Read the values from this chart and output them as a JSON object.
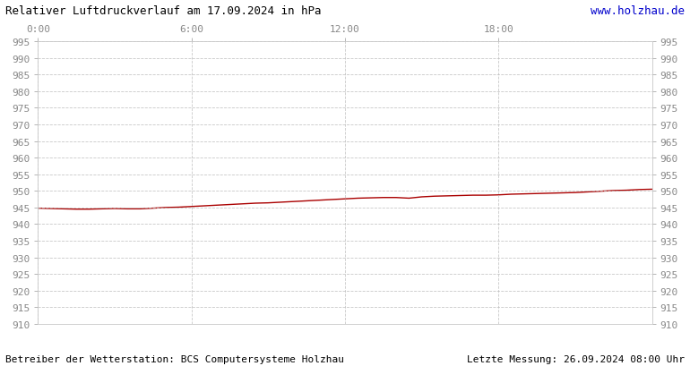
{
  "title": "Relativer Luftdruckverlauf am 17.09.2024 in hPa",
  "url_text": "www.holzhau.de",
  "footer_left": "Betreiber der Wetterstation: BCS Computersysteme Holzhau",
  "footer_right": "Letzte Messung: 26.09.2024 08:00 Uhr",
  "x_ticks_labels": [
    "0:00",
    "6:00",
    "12:00",
    "18:00"
  ],
  "x_ticks_positions": [
    0,
    360,
    720,
    1080
  ],
  "x_min": 0,
  "x_max": 1440,
  "y_min": 910,
  "y_max": 995,
  "y_tick_step": 5,
  "line_color": "#aa0000",
  "grid_color": "#bbbbbb",
  "background_color": "#ffffff",
  "border_color": "#cccccc",
  "title_color": "#000000",
  "url_color": "#0000cc",
  "footer_color": "#000000",
  "tick_label_color": "#888888",
  "pressure_data_x": [
    0,
    30,
    60,
    90,
    120,
    150,
    180,
    210,
    240,
    270,
    300,
    330,
    360,
    390,
    420,
    450,
    480,
    510,
    540,
    570,
    600,
    630,
    660,
    690,
    720,
    750,
    780,
    810,
    840,
    870,
    900,
    930,
    960,
    990,
    1020,
    1050,
    1080,
    1110,
    1140,
    1170,
    1200,
    1230,
    1260,
    1290,
    1320,
    1350,
    1380,
    1410,
    1440
  ],
  "pressure_data_y": [
    944.8,
    944.7,
    944.6,
    944.5,
    944.5,
    944.6,
    944.7,
    944.6,
    944.6,
    944.8,
    945.0,
    945.1,
    945.3,
    945.5,
    945.7,
    945.9,
    946.1,
    946.3,
    946.4,
    946.6,
    946.8,
    947.0,
    947.2,
    947.4,
    947.6,
    947.8,
    947.9,
    948.0,
    948.0,
    947.8,
    948.2,
    948.4,
    948.5,
    948.6,
    948.7,
    948.7,
    948.8,
    949.0,
    949.1,
    949.2,
    949.3,
    949.4,
    949.5,
    949.7,
    949.9,
    950.1,
    950.2,
    950.4,
    950.5
  ]
}
